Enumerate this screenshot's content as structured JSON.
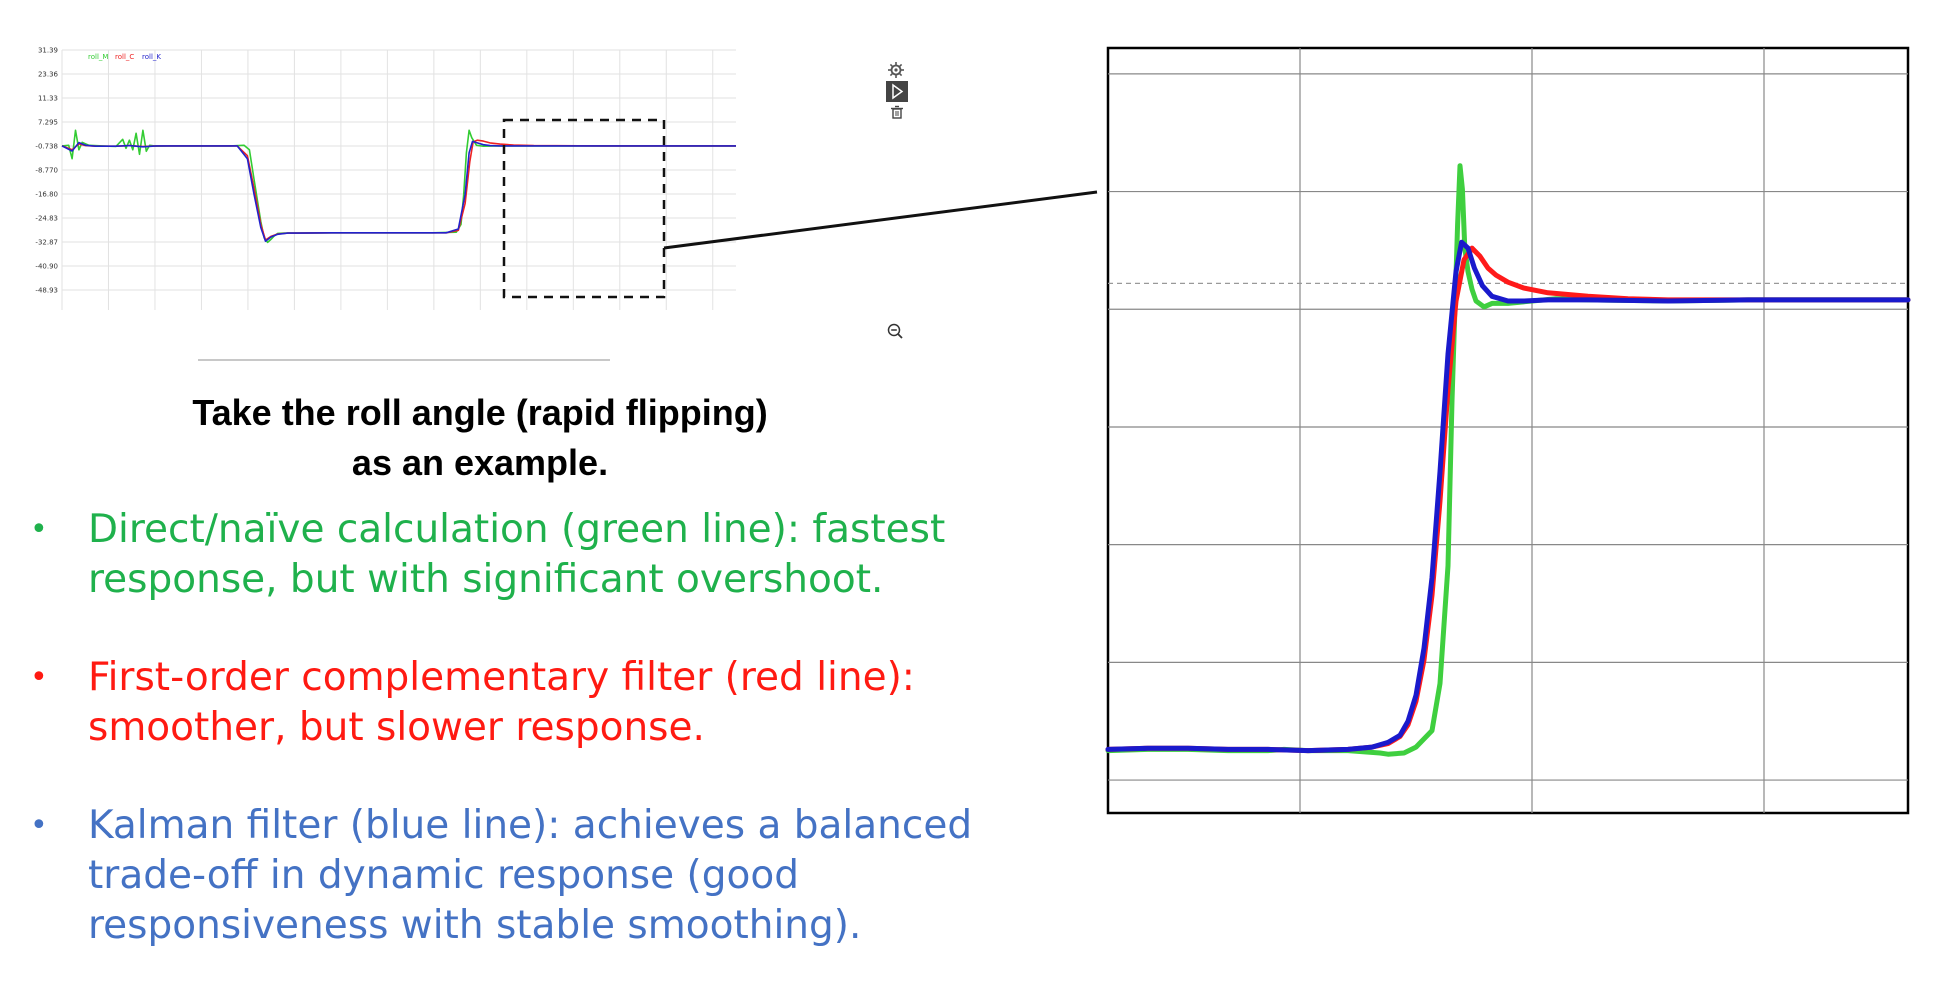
{
  "caption": {
    "line1": "Take the roll angle (rapid flipping)",
    "line2": "as an example."
  },
  "bullets": [
    {
      "text": "Direct/naïve calculation (green line): fastest response, but with significant overshoot.",
      "color": "#1fb14c"
    },
    {
      "text": "First-order complementary filter (red line): smoother, but slower response.",
      "color": "#ff1a12"
    },
    {
      "text": "Kalman filter (blue line): achieves a balanced trade-off in dynamic response (good responsiveness with stable smoothing).",
      "color": "#4472c4"
    }
  ],
  "toolbar_icons": [
    "gear-icon",
    "play-icon",
    "trash-icon",
    "zoom-out-icon"
  ],
  "chart_data": [
    {
      "type": "line",
      "title": "",
      "xlabel": "",
      "ylabel": "",
      "y_ticks": [
        "31.39",
        "23.36",
        "11.33",
        "7.295",
        "-0.738",
        "-8.770",
        "-16.80",
        "-24.83",
        "-32.87",
        "-40.90",
        "-48.93"
      ],
      "ylim": [
        -48.93,
        31.39
      ],
      "xlim": [
        0,
        100
      ],
      "grid": true,
      "legend": "top-left",
      "series": [
        {
          "name": "roll_M",
          "color": "#33cc33",
          "x": [
            0,
            1,
            1.5,
            2,
            2.5,
            3,
            4,
            6,
            8,
            9,
            9.5,
            10,
            10.5,
            11,
            11.5,
            12,
            12.5,
            13,
            14,
            16,
            18,
            20,
            25,
            27,
            27.8,
            28.5,
            29.5,
            30,
            30.5,
            31,
            31.5,
            32,
            33,
            35,
            40,
            45,
            55,
            58.5,
            59.2,
            59.6,
            60,
            60.4,
            60.8,
            61.5,
            62.5,
            65,
            70,
            80,
            90,
            100
          ],
          "y": [
            -0.7,
            -0.5,
            -5.0,
            4.5,
            -2.0,
            0.5,
            -0.5,
            -0.7,
            -0.9,
            1.5,
            -1.5,
            1.2,
            -2.0,
            3.5,
            -3.5,
            4.5,
            -2.5,
            -0.5,
            -0.8,
            -0.7,
            -0.7,
            -0.7,
            -0.7,
            -0.5,
            -2.0,
            -12,
            -26,
            -31.5,
            -33,
            -32.0,
            -30.8,
            -30.0,
            -29.9,
            -29.9,
            -29.8,
            -29.8,
            -29.8,
            -29.6,
            -27,
            -17,
            -3,
            4.5,
            2.0,
            -0.5,
            -0.8,
            -0.7,
            -0.7,
            -0.7,
            -0.7,
            -0.7
          ]
        },
        {
          "name": "roll_C",
          "color": "#ee2222",
          "x": [
            0,
            1.5,
            2.5,
            3.5,
            5,
            8,
            10,
            12,
            14,
            16,
            20,
            26,
            27.5,
            28.5,
            29.5,
            30.2,
            31,
            32,
            33.5,
            35,
            40,
            50,
            57,
            58.8,
            59.8,
            60.5,
            61,
            61.6,
            62.5,
            63.5,
            65,
            67,
            70,
            80,
            100
          ],
          "y": [
            -0.7,
            -2.0,
            0.0,
            -0.6,
            -0.8,
            -0.8,
            -0.6,
            -0.9,
            -0.7,
            -0.7,
            -0.7,
            -0.7,
            -4.0,
            -15,
            -27,
            -32.2,
            -31.0,
            -30.2,
            -29.9,
            -29.9,
            -29.8,
            -29.8,
            -29.8,
            -29.0,
            -20,
            -6,
            0.6,
            1.2,
            0.9,
            0.3,
            -0.1,
            -0.4,
            -0.6,
            -0.7,
            -0.7
          ]
        },
        {
          "name": "roll_K",
          "color": "#2222cc",
          "x": [
            0,
            1.5,
            2.5,
            3.5,
            5,
            8,
            10,
            12,
            14,
            16,
            20,
            26,
            27.5,
            28.5,
            29.5,
            30.2,
            31,
            32,
            33.5,
            35,
            40,
            50,
            57,
            58.8,
            59.8,
            60.4,
            60.9,
            61.5,
            62.5,
            63.5,
            65,
            70,
            80,
            100
          ],
          "y": [
            -0.7,
            -2.4,
            0.4,
            -0.5,
            -0.8,
            -0.8,
            -0.6,
            -1.0,
            -0.7,
            -0.7,
            -0.7,
            -0.7,
            -5.0,
            -17,
            -28,
            -32.6,
            -31.2,
            -30.3,
            -29.9,
            -29.9,
            -29.8,
            -29.8,
            -29.8,
            -28.5,
            -17,
            -3,
            0.8,
            0.4,
            -0.3,
            -0.6,
            -0.7,
            -0.7,
            -0.7,
            -0.7
          ]
        }
      ]
    },
    {
      "type": "line",
      "title": "",
      "xlabel": "",
      "ylabel": "",
      "xlim": [
        0,
        100
      ],
      "ylim": [
        -5,
        60
      ],
      "grid": true,
      "reference_line": 40,
      "series": [
        {
          "name": "",
          "color": "#3fcf3f",
          "x": [
            0,
            5,
            10,
            15,
            20,
            22,
            25,
            30,
            34,
            35,
            37,
            38.5,
            39.5,
            40.5,
            41.5,
            42.5,
            43.0,
            43.7,
            44.0,
            44.3,
            44.6,
            45,
            45.5,
            46,
            47,
            48,
            50,
            53,
            56,
            60,
            70,
            80,
            90,
            100
          ],
          "y": [
            0.3,
            0.4,
            0.4,
            0.3,
            0.3,
            0.4,
            0.3,
            0.3,
            0.1,
            0.0,
            0.1,
            0.6,
            1.3,
            2.0,
            6.0,
            16.0,
            30.0,
            45.0,
            50.0,
            48.0,
            43.0,
            41.0,
            39.5,
            38.5,
            38.0,
            38.3,
            38.3,
            38.5,
            38.7,
            38.6,
            38.5,
            38.6,
            38.6,
            38.6
          ]
        },
        {
          "name": "",
          "color": "#ff1a1a",
          "x": [
            0,
            5,
            10,
            15,
            20,
            25,
            30,
            33,
            35,
            36.5,
            37.5,
            38.5,
            39.5,
            40.5,
            41.5,
            42.5,
            43.5,
            44.5,
            45.5,
            46.5,
            47.5,
            48.5,
            50,
            52,
            55,
            60,
            65,
            70,
            80,
            90,
            100
          ],
          "y": [
            0.4,
            0.5,
            0.5,
            0.4,
            0.4,
            0.3,
            0.4,
            0.6,
            0.9,
            1.5,
            2.5,
            4.5,
            8.0,
            13.5,
            21.5,
            31.0,
            38.5,
            42.0,
            43.0,
            42.3,
            41.3,
            40.7,
            40.1,
            39.6,
            39.2,
            38.9,
            38.7,
            38.6,
            38.6,
            38.6,
            38.6
          ]
        },
        {
          "name": "",
          "color": "#1a1acc",
          "x": [
            0,
            5,
            10,
            15,
            20,
            25,
            30,
            33,
            35,
            36.5,
            37.5,
            38.5,
            39.5,
            40.5,
            41.5,
            42.5,
            43.5,
            44.2,
            45.0,
            45.8,
            46.8,
            48,
            50,
            52,
            55,
            60,
            70,
            80,
            90,
            100
          ],
          "y": [
            0.4,
            0.5,
            0.5,
            0.4,
            0.4,
            0.3,
            0.4,
            0.6,
            1.0,
            1.6,
            2.8,
            5.0,
            9.0,
            15.0,
            24.0,
            34.0,
            41.0,
            43.5,
            43.0,
            41.3,
            39.8,
            38.9,
            38.5,
            38.5,
            38.6,
            38.6,
            38.5,
            38.6,
            38.6,
            38.6
          ]
        }
      ]
    }
  ]
}
